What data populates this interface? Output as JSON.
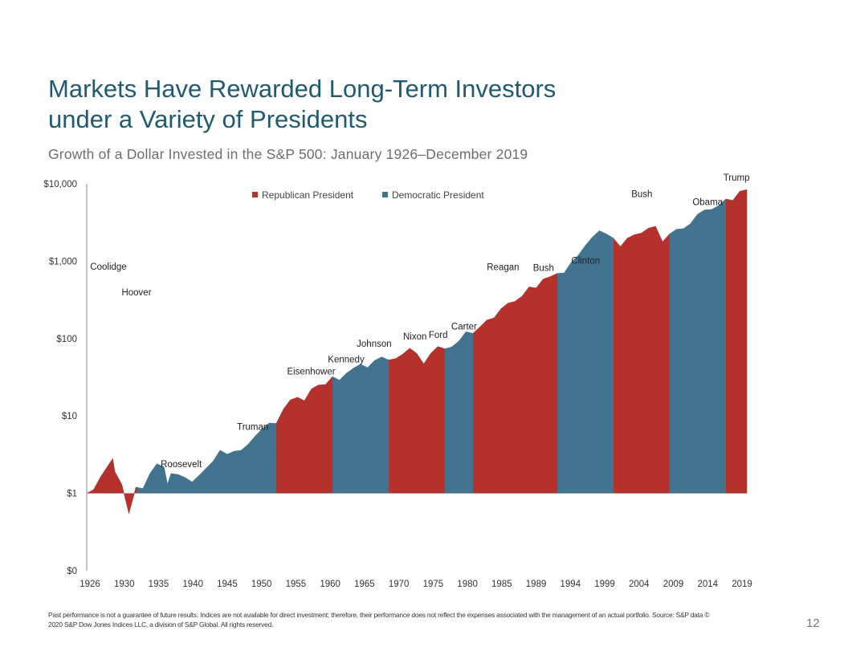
{
  "slide": {
    "title_line1": "Markets Have Rewarded Long-Term Investors",
    "title_line2": "under a Variety of Presidents",
    "subtitle": "Growth of a Dollar Invested in the S&P 500: January 1926–December 2019",
    "footnote_line1": "Past performance is not a guarantee of future results. Indices are not available for direct investment; therefore, their performance does not reflect the expenses associated with the management of an actual portfolio. Source: S&P data ©",
    "footnote_line2": "2020 S&P Dow Jones Indices LLC, a division of S&P Global. All rights reserved.",
    "page_number": "12"
  },
  "chart_data": {
    "type": "area",
    "yscale": "log",
    "x_range": [
      1926,
      2020
    ],
    "y_tick_labels": [
      {
        "value": 0.1,
        "label": "$0"
      },
      {
        "value": 1,
        "label": "$1"
      },
      {
        "value": 10,
        "label": "$10"
      },
      {
        "value": 100,
        "label": "$100"
      },
      {
        "value": 1000,
        "label": "$1,000"
      },
      {
        "value": 10000,
        "label": "$10,000"
      }
    ],
    "x_tick_labels": [
      "1926",
      "1930",
      "1935",
      "1940",
      "1945",
      "1950",
      "1955",
      "1960",
      "1965",
      "1970",
      "1975",
      "1980",
      "1985",
      "1989",
      "1994",
      "1999",
      "2004",
      "2009",
      "2014",
      "2019"
    ],
    "legend": {
      "placement": "top-center",
      "entries": [
        {
          "label": "Republican President",
          "color": "#b5312c"
        },
        {
          "label": "Democratic President",
          "color": "#42748f"
        }
      ]
    },
    "colors": {
      "republican": "#b5312c",
      "democratic": "#42748f",
      "axis": "#888888"
    },
    "series": {
      "x": [
        1926,
        1927,
        1928,
        1929.7,
        1930,
        1931,
        1932,
        1932.5,
        1933,
        1934,
        1935,
        1936,
        1937,
        1937.5,
        1938,
        1939,
        1940,
        1941,
        1942,
        1943,
        1944,
        1945,
        1946,
        1947,
        1948,
        1949,
        1950,
        1951,
        1952,
        1953,
        1954,
        1955,
        1956,
        1957,
        1958,
        1959,
        1960,
        1961,
        1962,
        1963,
        1964,
        1965,
        1966,
        1967,
        1968,
        1969,
        1970,
        1971,
        1972,
        1973,
        1974,
        1975,
        1976,
        1977,
        1978,
        1979,
        1980,
        1981,
        1982,
        1983,
        1984,
        1985,
        1986,
        1987,
        1988,
        1989,
        1990,
        1991,
        1992,
        1993,
        1994,
        1995,
        1996,
        1997,
        1998,
        1999,
        2000,
        2001,
        2002,
        2003,
        2004,
        2005,
        2006,
        2007,
        2008,
        2009,
        2010,
        2011,
        2012,
        2013,
        2014,
        2015,
        2016,
        2017,
        2018,
        2019,
        2019.99
      ],
      "values": [
        1.0,
        1.12,
        1.65,
        2.8,
        1.9,
        1.3,
        0.55,
        0.8,
        1.2,
        1.15,
        1.8,
        2.4,
        2.2,
        1.3,
        1.8,
        1.75,
        1.6,
        1.4,
        1.7,
        2.1,
        2.6,
        3.6,
        3.2,
        3.5,
        3.6,
        4.3,
        5.5,
        6.8,
        8.1,
        8.0,
        12.2,
        16.1,
        17.4,
        15.7,
        22.3,
        25.1,
        25.4,
        32.2,
        29.0,
        35.7,
        41.5,
        46.7,
        42.0,
        52.1,
        57.9,
        52.9,
        55.0,
        62.9,
        74.9,
        63.9,
        47.0,
        64.5,
        79.0,
        73.4,
        78.2,
        92.7,
        122.4,
        116.4,
        141.4,
        173.3,
        184.1,
        242.2,
        287.1,
        302.0,
        353.1,
        464.7,
        450.0,
        586.6,
        631.3,
        694.7,
        703.3,
        967.9,
        1189.5,
        1586.6,
        2040.0,
        2469.8,
        2245.0,
        1978.0,
        1540.8,
        1982.6,
        2198.3,
        2306.3,
        2670.6,
        2817.3,
        1775.0,
        2244.5,
        2582.3,
        2636.6,
        3058.6,
        4049.3,
        4603.5,
        4666.8,
        5225.5,
        6366.1,
        6087.3,
        8003.8,
        8400.0
      ]
    },
    "presidents": [
      {
        "name": "Coolidge",
        "party": "R",
        "start": 1926,
        "end": 1929.17
      },
      {
        "name": "Hoover",
        "party": "R",
        "start": 1929.17,
        "end": 1933.17
      },
      {
        "name": "Roosevelt",
        "party": "D",
        "start": 1933.17,
        "end": 1945.3
      },
      {
        "name": "Truman",
        "party": "D",
        "start": 1945.3,
        "end": 1953.05
      },
      {
        "name": "Eisenhower",
        "party": "R",
        "start": 1953.05,
        "end": 1961.05
      },
      {
        "name": "Kennedy",
        "party": "D",
        "start": 1961.05,
        "end": 1963.9
      },
      {
        "name": "Johnson",
        "party": "D",
        "start": 1963.9,
        "end": 1969.05
      },
      {
        "name": "Nixon",
        "party": "R",
        "start": 1969.05,
        "end": 1974.6
      },
      {
        "name": "Ford",
        "party": "R",
        "start": 1974.6,
        "end": 1977.05
      },
      {
        "name": "Carter",
        "party": "D",
        "start": 1977.05,
        "end": 1981.05
      },
      {
        "name": "Reagan",
        "party": "R",
        "start": 1981.05,
        "end": 1989.05
      },
      {
        "name": "Bush",
        "party": "R",
        "start": 1989.05,
        "end": 1993.05
      },
      {
        "name": "Clinton",
        "party": "D",
        "start": 1993.05,
        "end": 2001.05
      },
      {
        "name": "Bush",
        "party": "R",
        "start": 2001.05,
        "end": 2009.05
      },
      {
        "name": "Obama",
        "party": "D",
        "start": 2009.05,
        "end": 2017.05
      },
      {
        "name": "Trump",
        "party": "R",
        "start": 2017.05,
        "end": 2020
      }
    ]
  }
}
